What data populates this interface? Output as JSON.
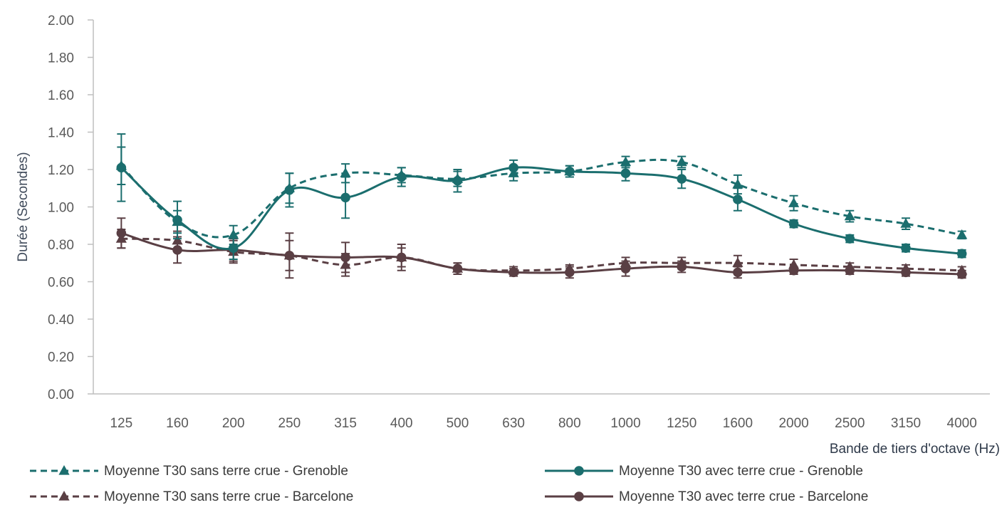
{
  "chart_data": {
    "type": "line",
    "title": "",
    "xlabel": "Bande de tiers d'octave (Hz)",
    "ylabel": "Durée (Secondes)",
    "ylim": [
      0,
      2
    ],
    "yticks": [
      "0.00",
      "0.20",
      "0.40",
      "0.60",
      "0.80",
      "1.00",
      "1.20",
      "1.40",
      "1.60",
      "1.80",
      "2.00"
    ],
    "categories": [
      "125",
      "160",
      "200",
      "250",
      "315",
      "400",
      "500",
      "630",
      "800",
      "1000",
      "1250",
      "1600",
      "2000",
      "2500",
      "3150",
      "4000"
    ],
    "grid": false,
    "legend_position": "bottom",
    "series": [
      {
        "name": "Moyenne T30 sans terre crue - Grenoble",
        "color": "#1b6e6e",
        "dash": true,
        "marker": "triangle",
        "values": [
          1.22,
          0.92,
          0.85,
          1.1,
          1.18,
          1.17,
          1.15,
          1.18,
          1.19,
          1.24,
          1.24,
          1.12,
          1.02,
          0.95,
          0.91,
          0.85
        ],
        "errors": [
          0.1,
          0.06,
          0.05,
          0.08,
          0.05,
          0.04,
          0.04,
          0.04,
          0.03,
          0.03,
          0.03,
          0.05,
          0.04,
          0.03,
          0.03,
          0.02
        ]
      },
      {
        "name": "Moyenne T30 avec terre crue - Grenoble",
        "color": "#1b6e6e",
        "dash": false,
        "marker": "circle",
        "values": [
          1.21,
          0.93,
          0.78,
          1.09,
          1.05,
          1.16,
          1.14,
          1.21,
          1.19,
          1.18,
          1.15,
          1.04,
          0.91,
          0.83,
          0.78,
          0.75
        ],
        "errors": [
          0.18,
          0.1,
          0.06,
          0.09,
          0.11,
          0.05,
          0.06,
          0.04,
          0.03,
          0.04,
          0.05,
          0.06,
          0.02,
          0.02,
          0.02,
          0.02
        ]
      },
      {
        "name": "Moyenne T30 sans terre crue - Barcelone",
        "color": "#5a3f44",
        "dash": true,
        "marker": "triangle",
        "values": [
          0.83,
          0.82,
          0.76,
          0.74,
          0.69,
          0.73,
          0.67,
          0.66,
          0.67,
          0.7,
          0.7,
          0.7,
          0.69,
          0.68,
          0.67,
          0.66
        ],
        "errors": [
          0.05,
          0.05,
          0.06,
          0.08,
          0.06,
          0.05,
          0.03,
          0.02,
          0.02,
          0.03,
          0.03,
          0.04,
          0.03,
          0.02,
          0.02,
          0.02
        ]
      },
      {
        "name": "Moyenne T30 avec terre crue - Barcelone",
        "color": "#5a3f44",
        "dash": false,
        "marker": "circle",
        "values": [
          0.86,
          0.77,
          0.77,
          0.74,
          0.73,
          0.73,
          0.67,
          0.65,
          0.65,
          0.67,
          0.68,
          0.65,
          0.66,
          0.66,
          0.65,
          0.64
        ],
        "errors": [
          0.08,
          0.07,
          0.06,
          0.12,
          0.08,
          0.07,
          0.03,
          0.02,
          0.03,
          0.04,
          0.03,
          0.03,
          0.02,
          0.02,
          0.02,
          0.02
        ]
      }
    ]
  }
}
